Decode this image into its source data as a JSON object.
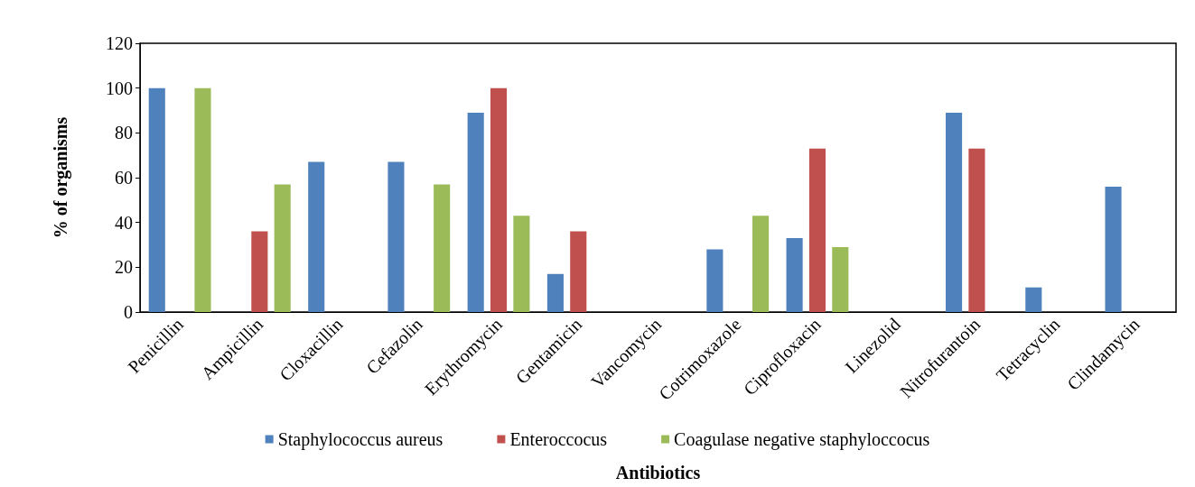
{
  "chart_data": {
    "type": "bar",
    "xlabel": "Antibiotics",
    "ylabel": "% of organisms",
    "categories": [
      "Penicillin",
      "Ampicillin",
      "Cloxacillin",
      "Cefazolin",
      "Erythromycin",
      "Gentamicin",
      "Vancomycin",
      "Cotrimoxazole",
      "Ciprofloxacin",
      "Linezolid",
      "Nitrofurantoin",
      "Tetracyclin",
      "Clindamycin"
    ],
    "series": [
      {
        "name": "Staphylococcus aureus",
        "color": "#4f81bd",
        "values": [
          100,
          0,
          67,
          67,
          89,
          17,
          0,
          28,
          33,
          0,
          89,
          11,
          56
        ]
      },
      {
        "name": "Enteroccocus",
        "color": "#c0504d",
        "values": [
          0,
          36,
          0,
          0,
          100,
          36,
          0,
          0,
          73,
          0,
          73,
          0,
          0
        ]
      },
      {
        "name": "Coagulase negative staphyloccocus",
        "color": "#9bbb59",
        "values": [
          100,
          57,
          0,
          57,
          43,
          0,
          0,
          43,
          29,
          0,
          0,
          0,
          0
        ]
      }
    ],
    "ylim": [
      0,
      120
    ],
    "yticks": [
      0,
      20,
      40,
      60,
      80,
      100,
      120
    ],
    "grid": false,
    "legend": "bottom"
  }
}
